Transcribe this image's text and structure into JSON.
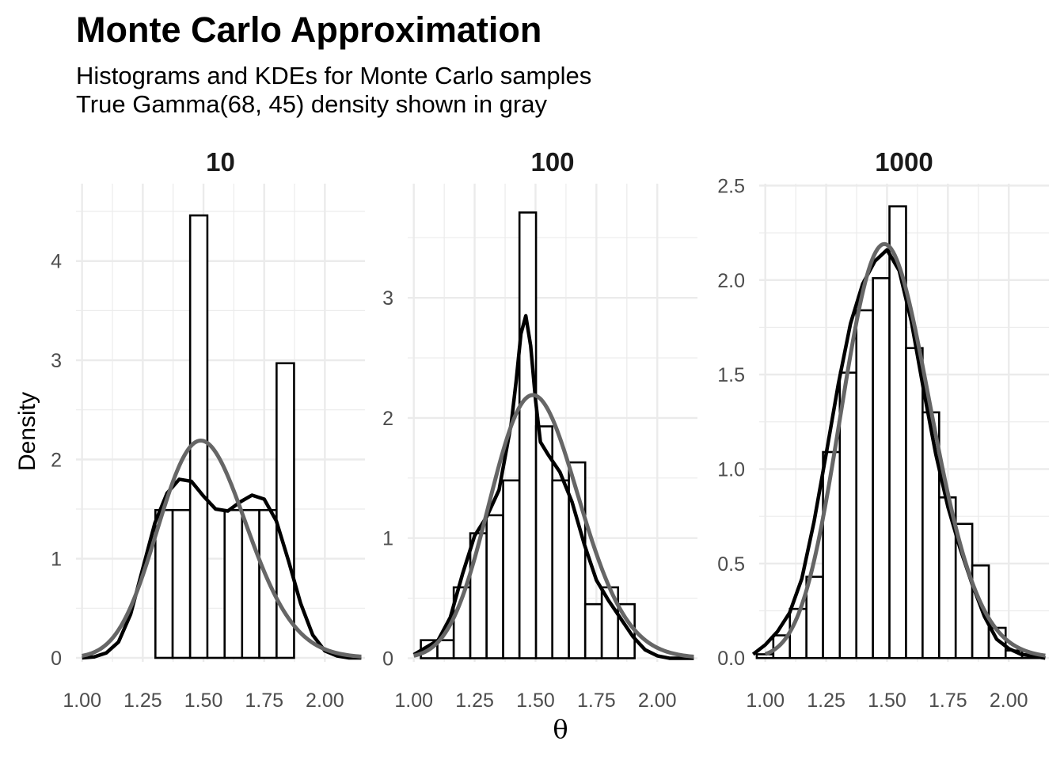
{
  "title": "Monte Carlo Approximation",
  "subtitle_lines": [
    "Histograms and KDEs for Monte Carlo samples",
    "True Gamma(68, 45) density shown in gray"
  ],
  "colors": {
    "bars_fill": "#ffffff",
    "bars_stroke": "#000000",
    "kde": "#000000",
    "true_density": "#666666",
    "grid": "#ebebeb"
  },
  "chart_data": {
    "type": "bar",
    "title": "Monte Carlo Approximation",
    "xlabel": "θ",
    "ylabel": "Density",
    "x_ticks": [
      "1.00",
      "1.25",
      "1.50",
      "1.75",
      "2.00"
    ],
    "x_tick_values": [
      1.0,
      1.25,
      1.5,
      1.75,
      2.0
    ],
    "xlim": [
      0.975,
      2.165
    ],
    "true_density": {
      "name": "Gamma(68, 45)",
      "shape": 68,
      "rate": 45
    },
    "grid": true,
    "legend": "none",
    "panels": [
      {
        "label": "10",
        "ylim": [
          -0.04,
          4.78
        ],
        "y_ticks": [
          "0",
          "1",
          "2",
          "3",
          "4"
        ],
        "y_tick_values": [
          0,
          1,
          2,
          3,
          4
        ],
        "bin_width": 0.0714,
        "bins": [
          {
            "x0": 1.302,
            "x1": 1.373,
            "h": 1.49
          },
          {
            "x0": 1.373,
            "x1": 1.445,
            "h": 1.49
          },
          {
            "x0": 1.445,
            "x1": 1.516,
            "h": 4.46
          },
          {
            "x0": 1.516,
            "x1": 1.587,
            "h": 0
          },
          {
            "x0": 1.587,
            "x1": 1.659,
            "h": 1.49
          },
          {
            "x0": 1.659,
            "x1": 1.73,
            "h": 1.49
          },
          {
            "x0": 1.73,
            "x1": 1.801,
            "h": 1.49
          },
          {
            "x0": 1.801,
            "x1": 1.873,
            "h": 2.97
          }
        ],
        "kde": {
          "x": [
            1.0,
            1.05,
            1.1,
            1.15,
            1.2,
            1.25,
            1.3,
            1.35,
            1.4,
            1.45,
            1.5,
            1.55,
            1.6,
            1.65,
            1.7,
            1.75,
            1.8,
            1.85,
            1.9,
            1.95,
            2.0,
            2.05,
            2.1,
            2.15
          ],
          "y": [
            0.0,
            0.01,
            0.05,
            0.16,
            0.44,
            0.9,
            1.36,
            1.66,
            1.8,
            1.78,
            1.63,
            1.5,
            1.48,
            1.57,
            1.64,
            1.6,
            1.38,
            0.98,
            0.55,
            0.23,
            0.07,
            0.02,
            0.0,
            0.0
          ]
        }
      },
      {
        "label": "100",
        "ylim": [
          -0.03,
          3.95
        ],
        "y_ticks": [
          "0",
          "1",
          "2",
          "3"
        ],
        "y_tick_values": [
          0,
          1,
          2,
          3
        ],
        "bin_width": 0.0675,
        "bins": [
          {
            "x0": 1.029,
            "x1": 1.097,
            "h": 0.15
          },
          {
            "x0": 1.097,
            "x1": 1.164,
            "h": 0.15
          },
          {
            "x0": 1.164,
            "x1": 1.232,
            "h": 0.59
          },
          {
            "x0": 1.232,
            "x1": 1.299,
            "h": 1.04
          },
          {
            "x0": 1.299,
            "x1": 1.367,
            "h": 1.19
          },
          {
            "x0": 1.367,
            "x1": 1.434,
            "h": 1.48
          },
          {
            "x0": 1.434,
            "x1": 1.502,
            "h": 3.71
          },
          {
            "x0": 1.502,
            "x1": 1.569,
            "h": 1.93
          },
          {
            "x0": 1.569,
            "x1": 1.637,
            "h": 1.48
          },
          {
            "x0": 1.637,
            "x1": 1.704,
            "h": 1.63
          },
          {
            "x0": 1.704,
            "x1": 1.772,
            "h": 0.45
          },
          {
            "x0": 1.772,
            "x1": 1.839,
            "h": 0.59
          },
          {
            "x0": 1.839,
            "x1": 1.907,
            "h": 0.45
          }
        ],
        "kde": {
          "x": [
            1.0,
            1.05,
            1.1,
            1.15,
            1.2,
            1.25,
            1.3,
            1.35,
            1.4,
            1.42,
            1.44,
            1.46,
            1.48,
            1.5,
            1.52,
            1.55,
            1.6,
            1.65,
            1.7,
            1.75,
            1.8,
            1.85,
            1.9,
            1.95,
            2.0,
            2.05,
            2.1,
            2.15
          ],
          "y": [
            0.03,
            0.09,
            0.15,
            0.34,
            0.7,
            1.02,
            1.18,
            1.4,
            1.95,
            2.3,
            2.7,
            2.85,
            2.6,
            2.15,
            1.8,
            1.7,
            1.55,
            1.3,
            0.95,
            0.65,
            0.48,
            0.33,
            0.18,
            0.07,
            0.02,
            0.0,
            0.0,
            0.0
          ]
        }
      },
      {
        "label": "1000",
        "ylim": [
          -0.02,
          2.51
        ],
        "y_ticks": [
          "0.0",
          "0.5",
          "1.0",
          "1.5",
          "2.0",
          "2.5"
        ],
        "y_tick_values": [
          0,
          0.5,
          1.0,
          1.5,
          2.0,
          2.5
        ],
        "bin_width": 0.0681,
        "bins": [
          {
            "x0": 0.965,
            "x1": 1.033,
            "h": 0.02
          },
          {
            "x0": 1.033,
            "x1": 1.101,
            "h": 0.12
          },
          {
            "x0": 1.101,
            "x1": 1.169,
            "h": 0.26
          },
          {
            "x0": 1.169,
            "x1": 1.237,
            "h": 0.43
          },
          {
            "x0": 1.237,
            "x1": 1.306,
            "h": 1.09
          },
          {
            "x0": 1.306,
            "x1": 1.374,
            "h": 1.51
          },
          {
            "x0": 1.374,
            "x1": 1.442,
            "h": 1.84
          },
          {
            "x0": 1.442,
            "x1": 1.51,
            "h": 2.01
          },
          {
            "x0": 1.51,
            "x1": 1.578,
            "h": 2.39
          },
          {
            "x0": 1.578,
            "x1": 1.646,
            "h": 1.64
          },
          {
            "x0": 1.646,
            "x1": 1.714,
            "h": 1.3
          },
          {
            "x0": 1.714,
            "x1": 1.782,
            "h": 0.85
          },
          {
            "x0": 1.782,
            "x1": 1.85,
            "h": 0.71
          },
          {
            "x0": 1.85,
            "x1": 1.918,
            "h": 0.49
          },
          {
            "x0": 1.918,
            "x1": 1.987,
            "h": 0.16
          },
          {
            "x0": 1.987,
            "x1": 2.055,
            "h": 0.04
          },
          {
            "x0": 2.055,
            "x1": 2.123,
            "h": 0.02
          }
        ],
        "kde": {
          "x": [
            0.95,
            1.0,
            1.05,
            1.1,
            1.15,
            1.2,
            1.25,
            1.3,
            1.35,
            1.4,
            1.45,
            1.5,
            1.55,
            1.6,
            1.65,
            1.7,
            1.75,
            1.8,
            1.85,
            1.9,
            1.95,
            2.0,
            2.05,
            2.1,
            2.15
          ],
          "y": [
            0.02,
            0.07,
            0.14,
            0.24,
            0.42,
            0.72,
            1.08,
            1.45,
            1.77,
            1.98,
            2.1,
            2.16,
            2.05,
            1.78,
            1.42,
            1.08,
            0.8,
            0.58,
            0.39,
            0.22,
            0.1,
            0.05,
            0.02,
            0.01,
            0.0
          ]
        }
      }
    ]
  }
}
